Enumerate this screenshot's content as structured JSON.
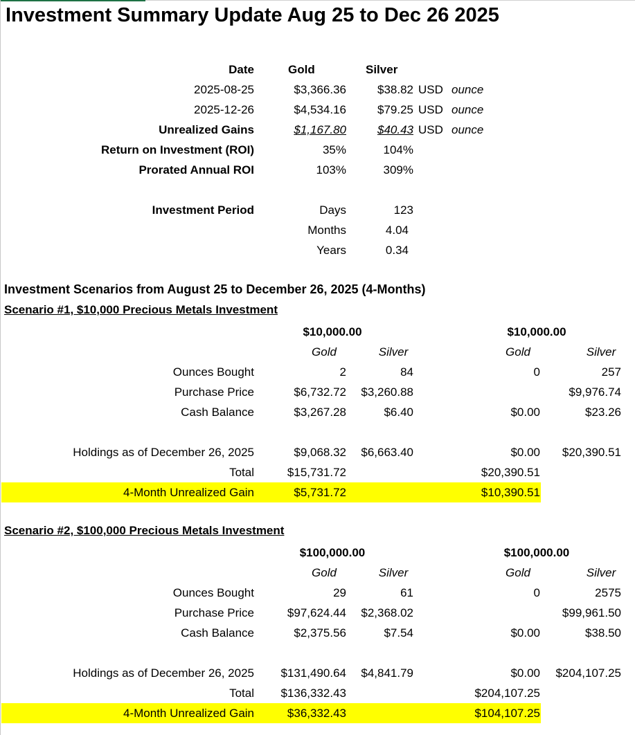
{
  "title": "Investment Summary Update Aug 25 to Dec 26 2025",
  "summary": {
    "headers": {
      "date": "Date",
      "gold": "Gold",
      "silver": "Silver"
    },
    "rows": [
      {
        "label": "2025-08-25",
        "gold": "$3,366.36",
        "silver": "$38.82",
        "unit": "USD",
        "per": "ounce"
      },
      {
        "label": "2025-12-26",
        "gold": "$4,534.16",
        "silver": "$79.25",
        "unit": "USD",
        "per": "ounce"
      },
      {
        "label": "Unrealized Gains",
        "gold": "$1,167.80",
        "silver": "$40.43",
        "unit": "USD",
        "per": "ounce"
      },
      {
        "label": "Return on Investment (ROI)",
        "gold": "35%",
        "silver": "104%"
      },
      {
        "label": "Prorated Annual ROI",
        "gold": "103%",
        "silver": "309%"
      }
    ],
    "period": {
      "label": "Investment Period",
      "items": [
        {
          "unit": "Days",
          "value": "123"
        },
        {
          "unit": "Months",
          "value": "4.04"
        },
        {
          "unit": "Years",
          "value": "0.34"
        }
      ]
    }
  },
  "scenarios_title": "Investment Scenarios from August 25 to December 26, 2025 (4-Months)",
  "scenarios": [
    {
      "title": "Scenario #1, $10,000 Precious Metals Investment",
      "amount_a": "$10,000.00",
      "amount_b": "$10,000.00",
      "gold": "Gold",
      "silver": "Silver",
      "rows": [
        {
          "label": "Ounces Bought",
          "a_gold": "2",
          "a_silver": "84",
          "b_gold": "0",
          "b_silver": "257"
        },
        {
          "label": "Purchase Price",
          "a_gold": "$6,732.72",
          "a_silver": "$3,260.88",
          "b_gold": "",
          "b_silver": "$9,976.74"
        },
        {
          "label": "Cash Balance",
          "a_gold": "$3,267.28",
          "a_silver": "$6.40",
          "b_gold": "$0.00",
          "b_silver": "$23.26"
        },
        {
          "label": "Holdings as of December 26, 2025",
          "a_gold": "$9,068.32",
          "a_silver": "$6,663.40",
          "b_gold": "$0.00",
          "b_silver": "$20,390.51"
        }
      ],
      "total": {
        "label": "Total",
        "a": "$15,731.72",
        "b": "$20,390.51"
      },
      "gain": {
        "label": "4-Month Unrealized Gain",
        "a": "$5,731.72",
        "b": "$10,390.51"
      }
    },
    {
      "title": "Scenario #2, $100,000 Precious Metals Investment",
      "amount_a": "$100,000.00",
      "amount_b": "$100,000.00",
      "gold": "Gold",
      "silver": "Silver",
      "rows": [
        {
          "label": "Ounces Bought",
          "a_gold": "29",
          "a_silver": "61",
          "b_gold": "0",
          "b_silver": "2575"
        },
        {
          "label": "Purchase Price",
          "a_gold": "$97,624.44",
          "a_silver": "$2,368.02",
          "b_gold": "",
          "b_silver": "$99,961.50"
        },
        {
          "label": "Cash Balance",
          "a_gold": "$2,375.56",
          "a_silver": "$7.54",
          "b_gold": "$0.00",
          "b_silver": "$38.50"
        },
        {
          "label": "Holdings as of December 26, 2025",
          "a_gold": "$131,490.64",
          "a_silver": "$4,841.79",
          "b_gold": "$0.00",
          "b_silver": "$204,107.25"
        }
      ],
      "total": {
        "label": "Total",
        "a": "$136,332.43",
        "b": "$204,107.25"
      },
      "gain": {
        "label": "4-Month Unrealized Gain",
        "a": "$36,332.43",
        "b": "$104,107.25"
      }
    }
  ],
  "colors": {
    "highlight": "#ffff00",
    "sheet_accent": "#1e7145"
  }
}
